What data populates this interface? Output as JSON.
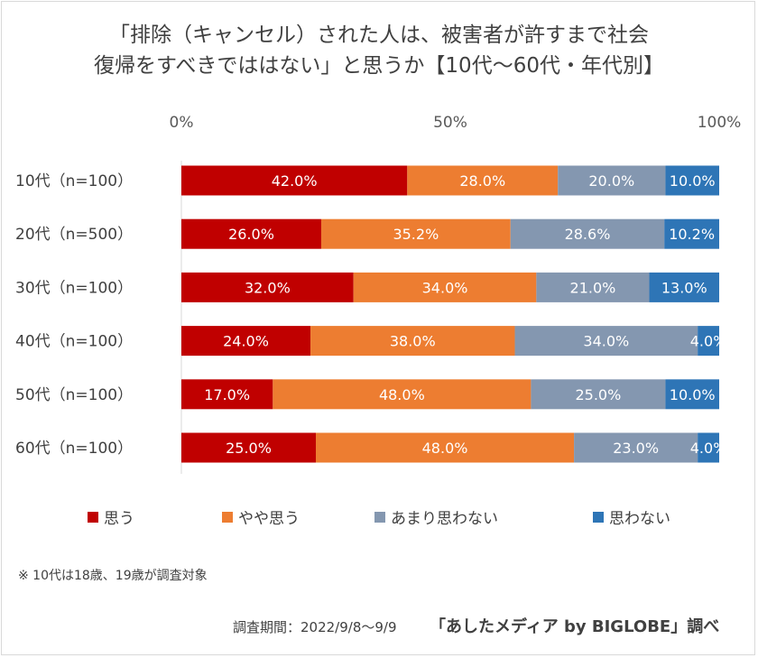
{
  "title_line1": "「排除（キャンセル）された人は、被害者が許すまで社会",
  "title_line2": "復帰をすべきでははない」と思うか【10代～60代・年代別】",
  "note": "※ 10代は18歳、19歳が調査対象",
  "period": "調査期間：2022/9/8～9/9",
  "credit": "「あしたメディア by BIGLOBE」調べ",
  "chart_data": {
    "type": "bar",
    "orientation": "horizontal",
    "stacked": "percent",
    "categories": [
      "10代（n=100）",
      "20代（n=500）",
      "30代（n=100）",
      "40代（n=100）",
      "50代（n=100）",
      "60代（n=100）"
    ],
    "xticks": [
      "0%",
      "50%",
      "100%"
    ],
    "xlim": [
      0,
      100
    ],
    "legend_position": "bottom",
    "series": [
      {
        "name": "思う",
        "color": "#c00000",
        "values": [
          42.0,
          26.0,
          32.0,
          24.0,
          17.0,
          25.0
        ]
      },
      {
        "name": "やや思う",
        "color": "#ed7d31",
        "values": [
          28.0,
          35.2,
          34.0,
          38.0,
          48.0,
          48.0
        ]
      },
      {
        "name": "あまり思わない",
        "color": "#8497b0",
        "values": [
          20.0,
          28.6,
          21.0,
          34.0,
          25.0,
          23.0
        ]
      },
      {
        "name": "思わない",
        "color": "#2e75b6",
        "values": [
          10.0,
          10.2,
          13.0,
          4.0,
          10.0,
          4.0
        ]
      }
    ]
  }
}
